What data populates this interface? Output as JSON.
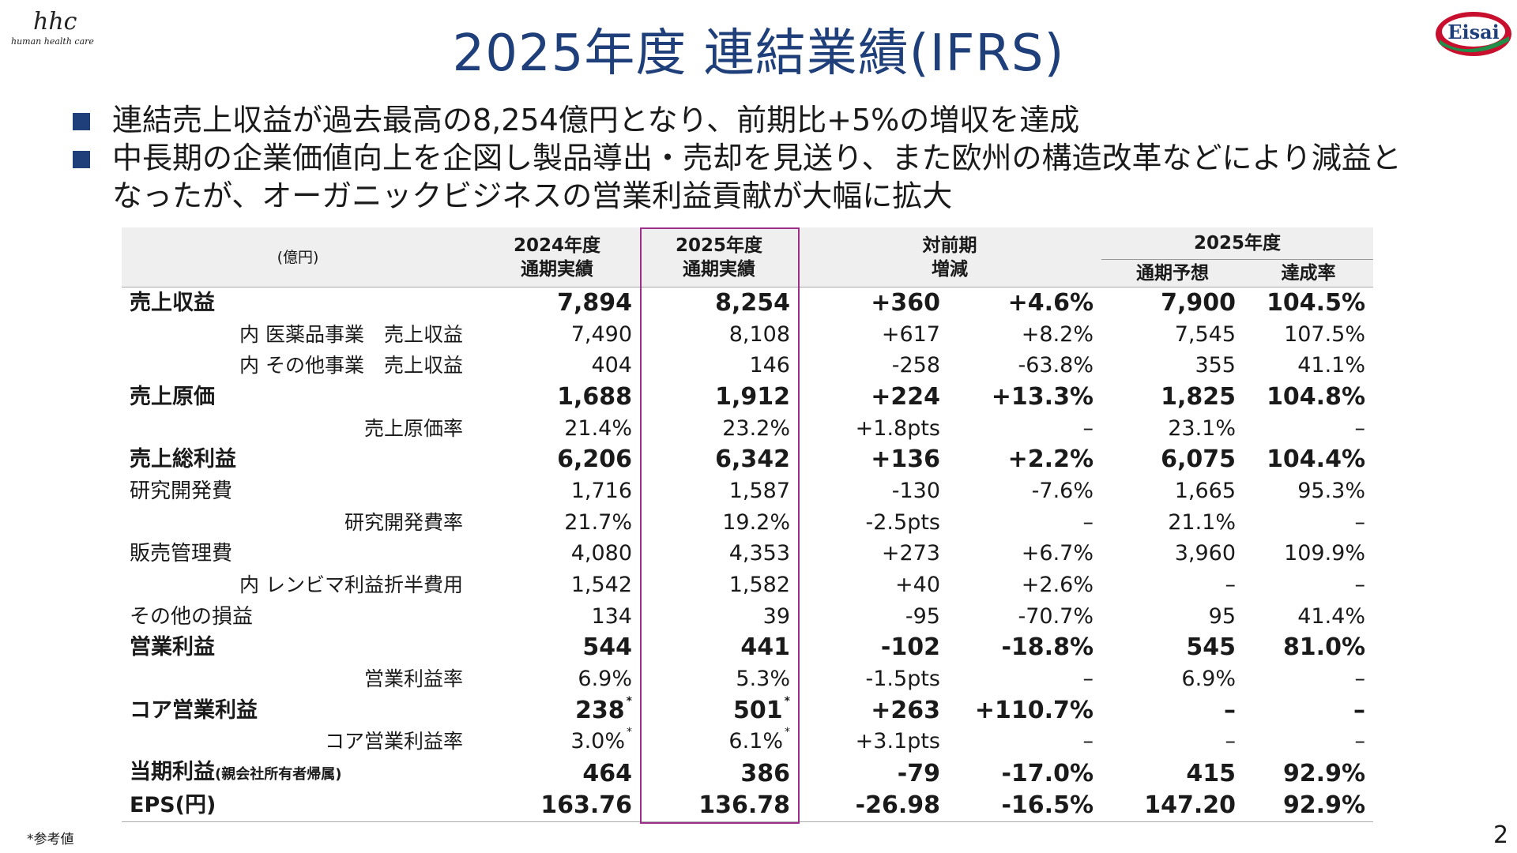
{
  "logo_hhc": {
    "script": "hhc",
    "tagline": "human health care"
  },
  "title": "2025年度 連結業績(IFRS)",
  "logo_eisai": "Eisai",
  "bullets": [
    "連結売上収益が過去最高の8,254億円となり、前期比+5%の増収を達成",
    "中長期の企業価値向上を企図し製品導出・売却を見送り、また欧州の構造改革などにより減益となったが、オーガニックビジネスの営業利益貢献が大幅に拡大"
  ],
  "table": {
    "header": {
      "unit": "(億円)",
      "col_2024_line1": "2024年度",
      "col_2024_line2": "通期実績",
      "col_2025_line1": "2025年度",
      "col_2025_line2": "通期実績",
      "yoy_line1": "対前期",
      "yoy_line2": "増減",
      "fy2025": "2025年度",
      "forecast": "通期予想",
      "achievement": "達成率"
    },
    "rows": [
      {
        "label": "売上収益",
        "fy24": "7,894",
        "fy25": "8,254",
        "diff": "+360",
        "pct": "+4.6%",
        "fc": "7,900",
        "ach": "104.5%"
      },
      {
        "label": "内 医薬品事業　売上収益",
        "fy24": "7,490",
        "fy25": "8,108",
        "diff": "+617",
        "pct": "+8.2%",
        "fc": "7,545",
        "ach": "107.5%"
      },
      {
        "label": "内 その他事業　売上収益",
        "fy24": "404",
        "fy25": "146",
        "diff": "-258",
        "pct": "-63.8%",
        "fc": "355",
        "ach": "41.1%"
      },
      {
        "label": "売上原価",
        "fy24": "1,688",
        "fy25": "1,912",
        "diff": "+224",
        "pct": "+13.3%",
        "fc": "1,825",
        "ach": "104.8%"
      },
      {
        "label": "売上原価率",
        "fy24": "21.4%",
        "fy25": "23.2%",
        "diff": "+1.8pts",
        "pct": "–",
        "fc": "23.1%",
        "ach": "–"
      },
      {
        "label": "売上総利益",
        "fy24": "6,206",
        "fy25": "6,342",
        "diff": "+136",
        "pct": "+2.2%",
        "fc": "6,075",
        "ach": "104.4%"
      },
      {
        "label": "研究開発費",
        "fy24": "1,716",
        "fy25": "1,587",
        "diff": "-130",
        "pct": "-7.6%",
        "fc": "1,665",
        "ach": "95.3%"
      },
      {
        "label": "研究開発費率",
        "fy24": "21.7%",
        "fy25": "19.2%",
        "diff": "-2.5pts",
        "pct": "–",
        "fc": "21.1%",
        "ach": "–"
      },
      {
        "label": "販売管理費",
        "fy24": "4,080",
        "fy25": "4,353",
        "diff": "+273",
        "pct": "+6.7%",
        "fc": "3,960",
        "ach": "109.9%"
      },
      {
        "label": "内 レンビマ利益折半費用",
        "fy24": "1,542",
        "fy25": "1,582",
        "diff": "+40",
        "pct": "+2.6%",
        "fc": "–",
        "ach": "–"
      },
      {
        "label": "その他の損益",
        "fy24": "134",
        "fy25": "39",
        "diff": "-95",
        "pct": "-70.7%",
        "fc": "95",
        "ach": "41.4%"
      },
      {
        "label": "営業利益",
        "fy24": "544",
        "fy25": "441",
        "diff": "-102",
        "pct": "-18.8%",
        "fc": "545",
        "ach": "81.0%"
      },
      {
        "label": "営業利益率",
        "fy24": "6.9%",
        "fy25": "5.3%",
        "diff": "-1.5pts",
        "pct": "–",
        "fc": "6.9%",
        "ach": "–"
      },
      {
        "label": "コア営業利益",
        "fy24": "238",
        "fy25": "501",
        "diff": "+263",
        "pct": "+110.7%",
        "fc": "–",
        "ach": "–",
        "mark": "*"
      },
      {
        "label": "コア営業利益率",
        "fy24": "3.0%",
        "fy25": "6.1%",
        "diff": "+3.1pts",
        "pct": "–",
        "fc": "–",
        "ach": "–",
        "mark": "*"
      },
      {
        "label": "当期利益",
        "label_note": "(親会社所有者帰属)",
        "fy24": "464",
        "fy25": "386",
        "diff": "-79",
        "pct": "-17.0%",
        "fc": "415",
        "ach": "92.9%"
      },
      {
        "label": "EPS(円)",
        "fy24": "163.76",
        "fy25": "136.78",
        "diff": "-26.98",
        "pct": "-16.5%",
        "fc": "147.20",
        "ach": "92.9%"
      }
    ]
  },
  "footnote": "*参考値",
  "page_number": "2",
  "colors": {
    "title": "#1f3f7a",
    "highlight_box": "#9b2f8a",
    "header_bg": "#efefef",
    "eisai_red": "#c8102e"
  }
}
